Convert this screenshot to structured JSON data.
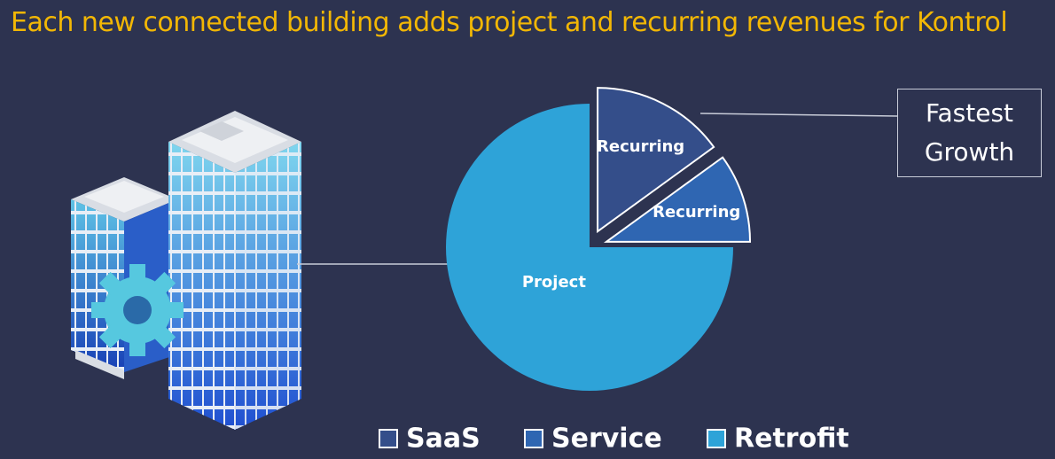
{
  "chart_data": {
    "type": "pie",
    "title": "Each new connected building adds project and recurring revenues for Kontrol",
    "categories": [
      "SaaS",
      "Service",
      "Retrofit"
    ],
    "values": [
      15,
      10,
      75
    ],
    "slice_labels": [
      "Recurring",
      "Recurring",
      "Project"
    ],
    "colors": [
      "#344e8a",
      "#2f66b2",
      "#2ea3d8"
    ],
    "exploded": [
      true,
      true,
      false
    ],
    "annotation": "Fastest Growth"
  }
}
